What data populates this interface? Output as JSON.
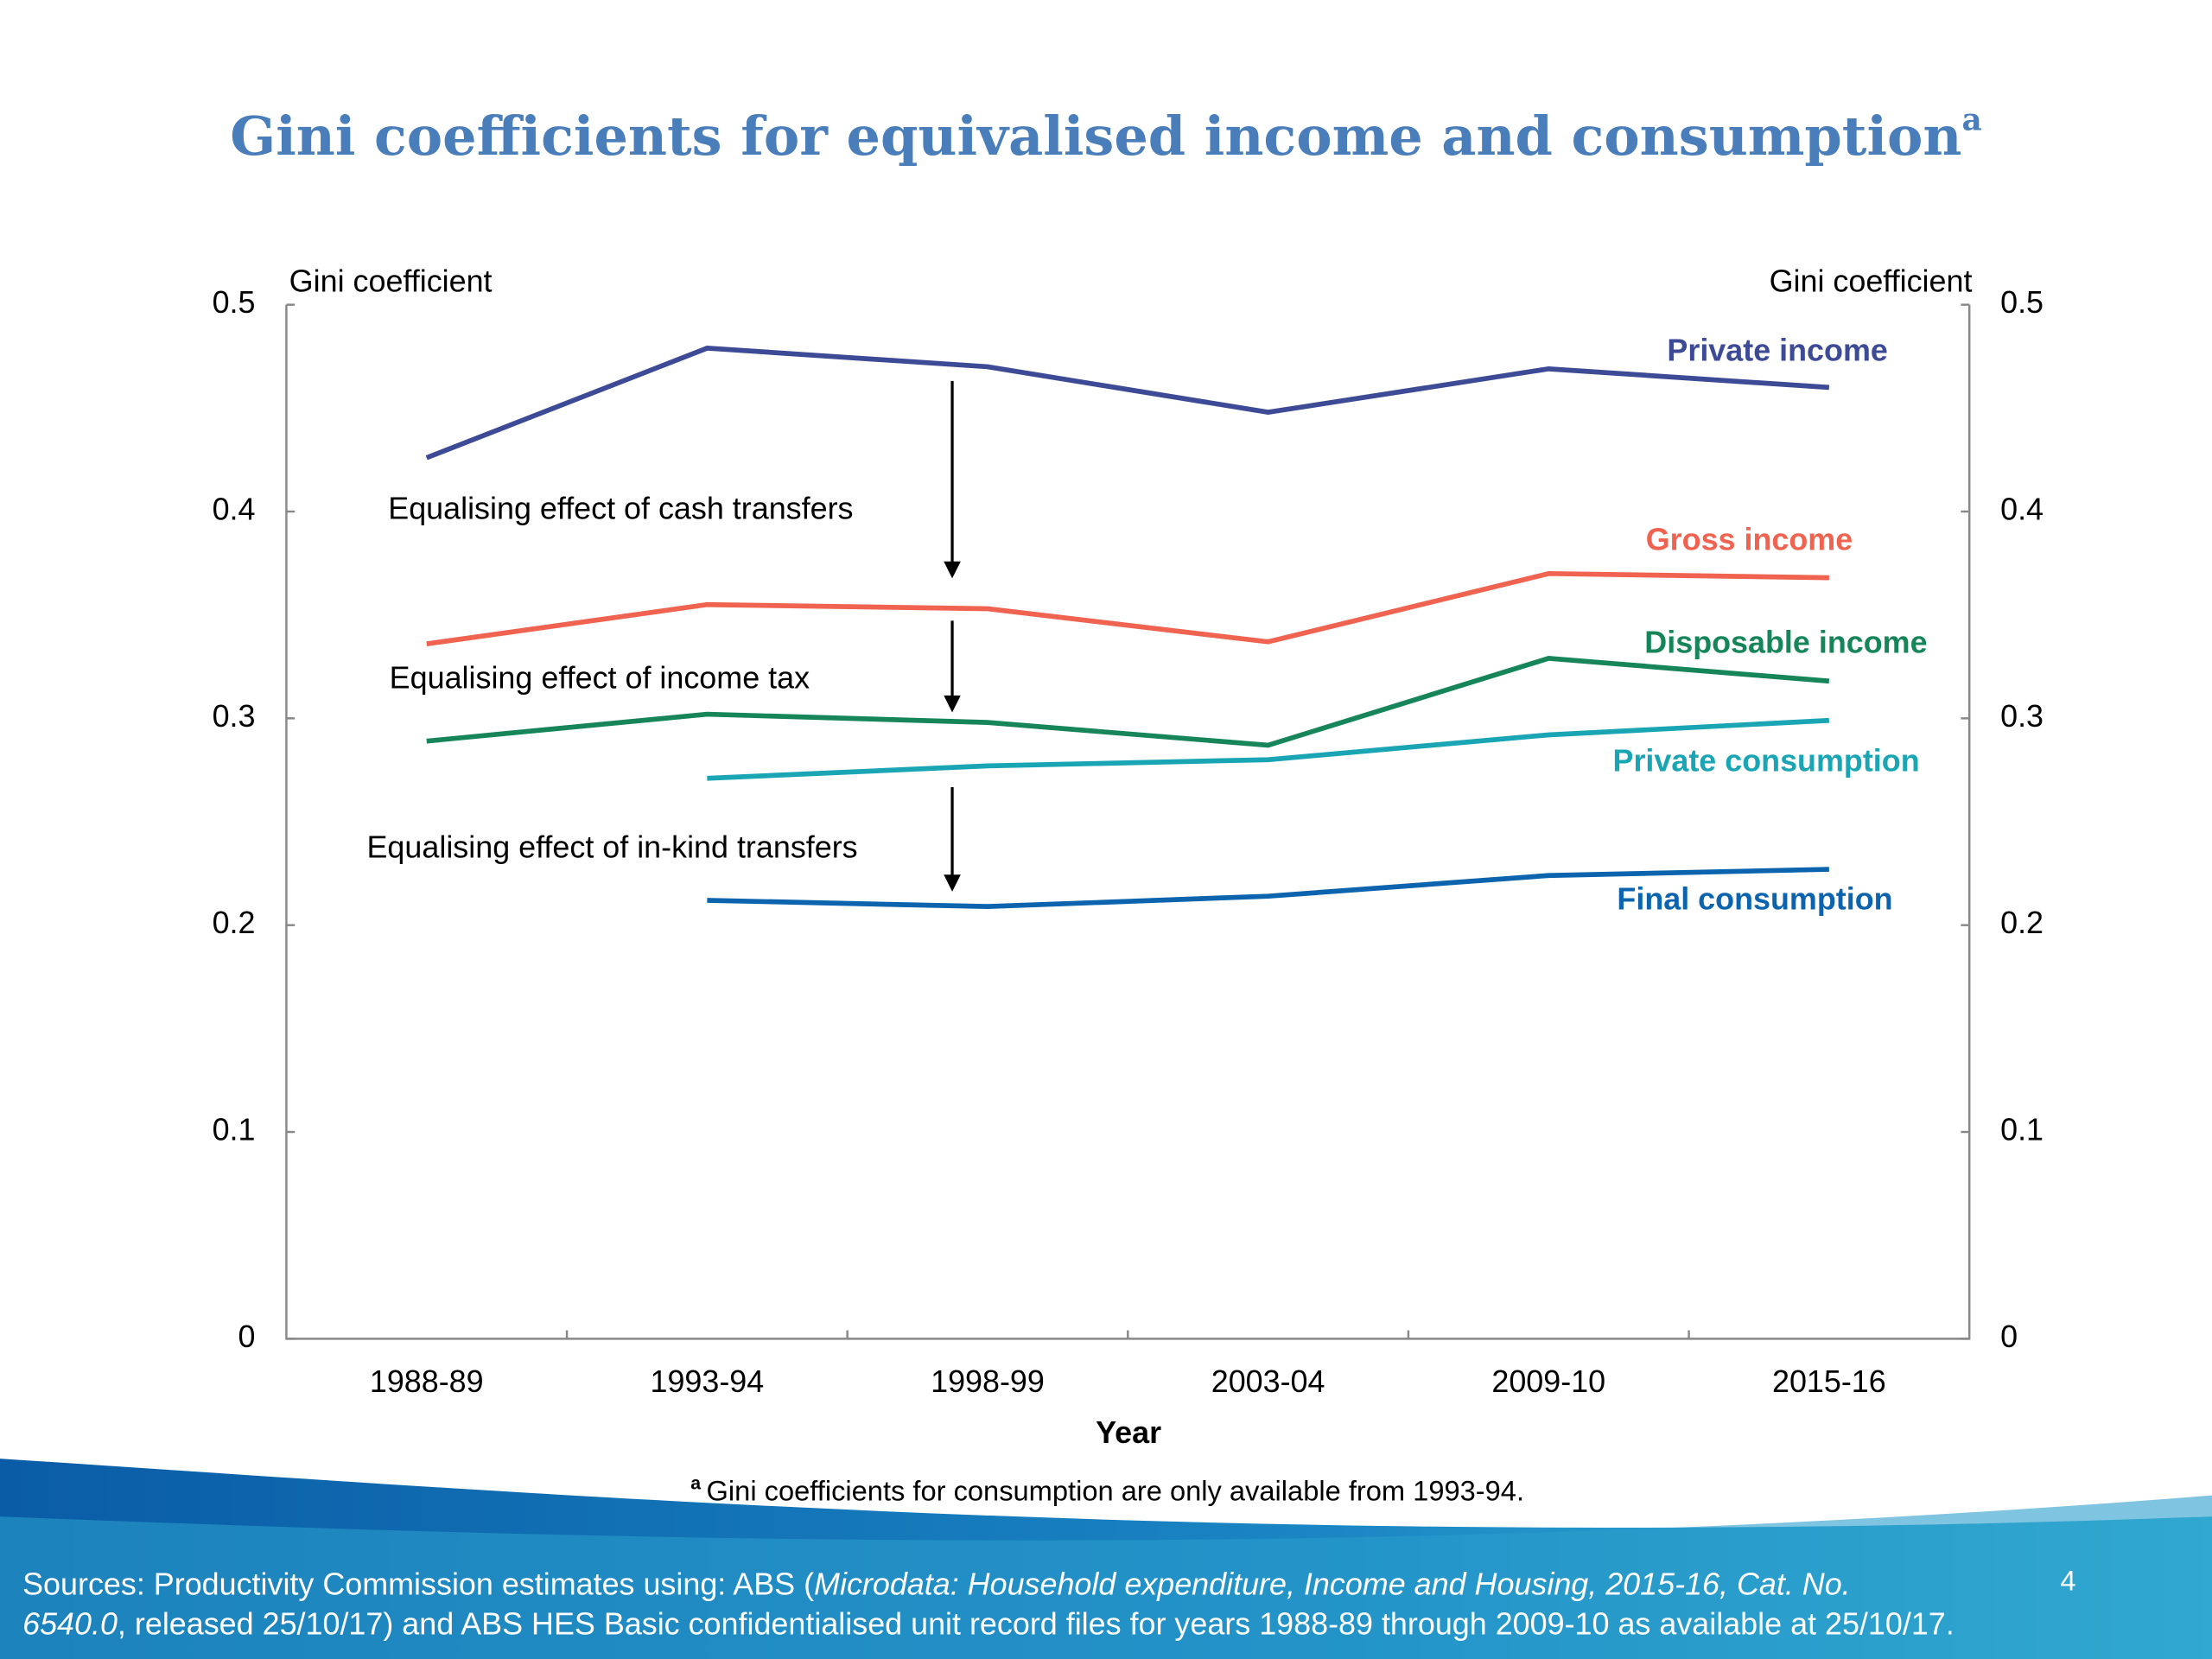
{
  "chart_data": {
    "type": "line",
    "title": "Gini coefficients for equivalised income and consumption",
    "title_superscript": "a",
    "y_label": "Gini coefficient",
    "y2_label": "Gini coefficient",
    "x_label": "Year",
    "categories": [
      "1988-89",
      "1993-94",
      "1998-99",
      "2003-04",
      "2009-10",
      "2015-16"
    ],
    "series": [
      {
        "name": "Private income",
        "color": "#3d4a96",
        "values": [
          0.426,
          0.479,
          0.47,
          0.448,
          0.469,
          0.46
        ]
      },
      {
        "name": "Gross income",
        "color": "#ef6350",
        "values": [
          0.336,
          0.355,
          0.353,
          0.337,
          0.37,
          0.368
        ]
      },
      {
        "name": "Disposable income",
        "color": "#17855a",
        "values": [
          0.289,
          0.302,
          0.298,
          0.287,
          0.329,
          0.318
        ]
      },
      {
        "name": "Private consumption",
        "color": "#1aa5b5",
        "values": [
          null,
          0.271,
          0.277,
          0.28,
          0.292,
          0.299
        ]
      },
      {
        "name": "Final consumption",
        "color": "#0b64ad",
        "values": [
          null,
          0.212,
          0.209,
          0.214,
          0.224,
          0.227
        ]
      }
    ],
    "ylim": [
      0,
      0.5
    ],
    "yticks": [
      0,
      0.1,
      0.2,
      0.3,
      0.4,
      0.5
    ],
    "y2lim": [
      0,
      0.5
    ],
    "y2ticks": [
      0,
      0.1,
      0.2,
      0.3,
      0.4,
      0.5
    ],
    "annotations": [
      "Equalising effect of cash transfers",
      "Equalising effect of income tax",
      "Equalising effect of in-kind transfers"
    ],
    "footnote_marker": "a",
    "footnote": "Gini coefficients for consumption are only available from 1993-94.",
    "sources": [
      [
        {
          "text": "Sources: Productivity Commission estimates using: ABS (",
          "italic": false
        },
        {
          "text": "Microdata: Household expenditure, Income and Housing, 2015-16, Cat. No.",
          "italic": true
        }
      ],
      [
        {
          "text": "6540.0",
          "italic": true
        },
        {
          "text": ", released 25/10/17) and ABS HES Basic confidentialised unit record files for years 1988-89 through 2009-10 as available at 25/10/17.",
          "italic": false
        }
      ]
    ],
    "page_number": "4"
  }
}
